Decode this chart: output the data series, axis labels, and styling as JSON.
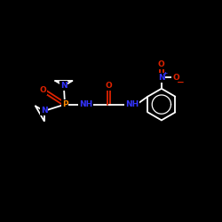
{
  "background_color": "#000000",
  "bond_color": "#ffffff",
  "N_color": "#3333ff",
  "O_color": "#dd2200",
  "P_color": "#ff8800",
  "figsize": [
    2.5,
    2.5
  ],
  "dpi": 100,
  "lw": 1.3,
  "fs": 6.5,
  "xlim": [
    0,
    10
  ],
  "ylim": [
    0,
    10
  ]
}
